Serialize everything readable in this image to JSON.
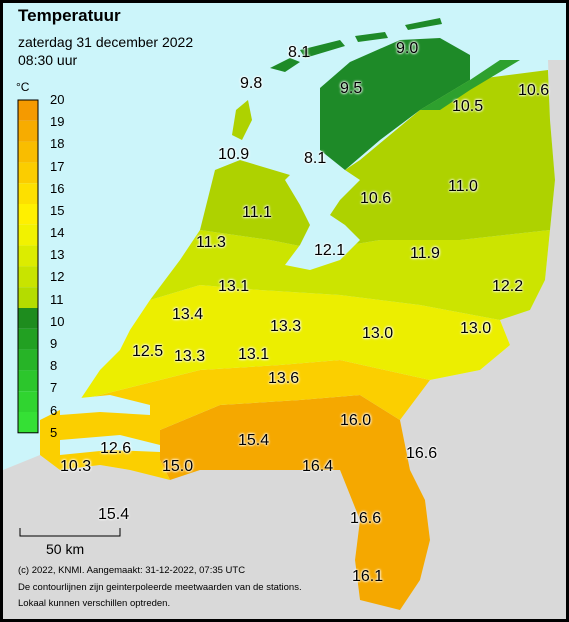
{
  "header": {
    "title": "Temperatuur",
    "date": "zaterdag 31 december 2022",
    "time": "08:30 uur"
  },
  "legend": {
    "unit": "°C",
    "ticks": [
      "20",
      "19",
      "18",
      "17",
      "16",
      "15",
      "14",
      "13",
      "12",
      "11",
      "10",
      "9",
      "8",
      "7",
      "6",
      "5"
    ],
    "colors": [
      "#f59a00",
      "#f7ac00",
      "#f9bd00",
      "#fbcd00",
      "#fde000",
      "#fff000",
      "#f2f200",
      "#dcec00",
      "#c8e400",
      "#b4dc00",
      "#1e8c1e",
      "#22a022",
      "#27b427",
      "#2cc62c",
      "#30d430",
      "#35e035"
    ]
  },
  "scale": {
    "label": "50 km"
  },
  "stations": [
    {
      "label": "8.1"
    },
    {
      "label": "9.0"
    },
    {
      "label": "9.8"
    },
    {
      "label": "9.5"
    },
    {
      "label": "10.5"
    },
    {
      "label": "10.6"
    },
    {
      "label": "10.9"
    },
    {
      "label": "8.1"
    },
    {
      "label": "10.6"
    },
    {
      "label": "11.0"
    },
    {
      "label": "11.1"
    },
    {
      "label": "11.3"
    },
    {
      "label": "12.1"
    },
    {
      "label": "11.9"
    },
    {
      "label": "12.2"
    },
    {
      "label": "13.1"
    },
    {
      "label": "13.4"
    },
    {
      "label": "13.3"
    },
    {
      "label": "13.0"
    },
    {
      "label": "13.0"
    },
    {
      "label": "12.5"
    },
    {
      "label": "13.3"
    },
    {
      "label": "13.1"
    },
    {
      "label": "13.6"
    },
    {
      "label": "16.0"
    },
    {
      "label": "15.4"
    },
    {
      "label": "12.6"
    },
    {
      "label": "16.6"
    },
    {
      "label": "16.4"
    },
    {
      "label": "10.3"
    },
    {
      "label": "15.0"
    },
    {
      "label": "15.4"
    },
    {
      "label": "16.6"
    },
    {
      "label": "16.1"
    }
  ],
  "footer": {
    "line1": "(c) 2022, KNMI. Aangemaakt: 31-12-2022, 07:35 UTC",
    "line2": "De contourlijnen zijn geinterpoleerde meetwaarden van de stations.",
    "line3": "Lokaal kunnen verschillen optreden."
  },
  "colors": {
    "sea": "#ccf5fa",
    "land_outside": "#d9d9d9",
    "green_dark": "#1e8a28",
    "green_mid": "#2ea02e",
    "lime": "#aed200",
    "yellow_green": "#cce400",
    "yellow": "#ecee00",
    "gold": "#fbcf00",
    "orange": "#f5a800"
  }
}
